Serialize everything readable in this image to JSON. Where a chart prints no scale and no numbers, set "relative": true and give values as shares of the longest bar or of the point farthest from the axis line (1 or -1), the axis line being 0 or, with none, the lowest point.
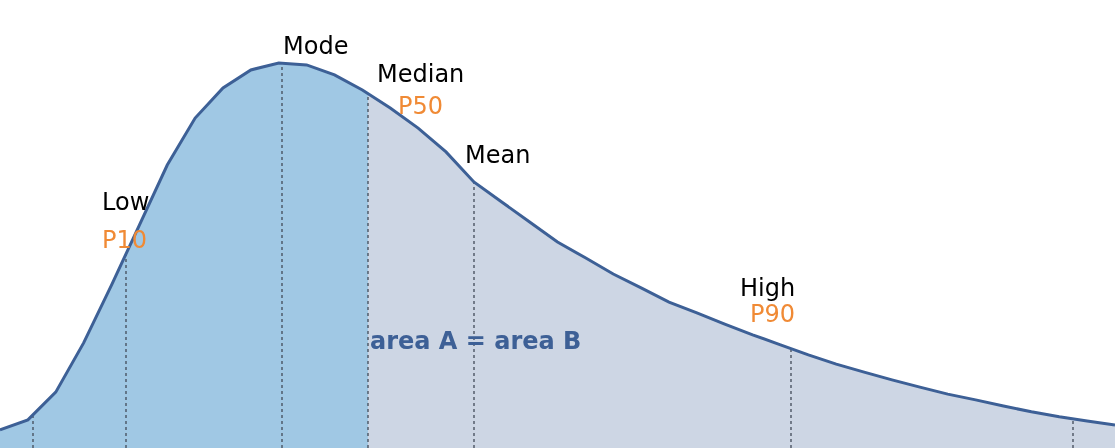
{
  "chart_data": {
    "type": "area",
    "relative": true,
    "tick_labels": false,
    "categories": [
      null,
      null,
      null,
      null,
      null,
      null,
      null,
      null,
      null,
      null,
      null,
      null,
      null,
      null,
      null,
      null,
      null,
      null,
      null,
      null,
      null,
      null,
      null,
      null,
      null,
      null,
      null,
      null,
      null,
      null,
      null,
      null,
      null,
      null,
      null,
      null,
      null,
      null,
      null,
      null,
      null
    ],
    "series": [
      {
        "color": "#3d6096",
        "values": [
          0.047,
          0.073,
          0.145,
          0.273,
          0.423,
          0.579,
          0.735,
          0.857,
          0.935,
          0.982,
          1.0,
          0.995,
          0.969,
          0.93,
          0.883,
          0.831,
          0.769,
          0.691,
          0.639,
          0.587,
          0.535,
          0.494,
          0.452,
          0.416,
          0.379,
          0.351,
          0.322,
          0.294,
          0.268,
          0.242,
          0.218,
          0.197,
          0.177,
          0.158,
          0.14,
          0.125,
          0.109,
          0.094,
          0.081,
          0.07,
          0.06
        ]
      }
    ],
    "annotations": [
      "Low",
      "P10",
      "Mode",
      "Median",
      "P50",
      "Mean",
      "High",
      "P90",
      "area A = area B"
    ]
  }
}
